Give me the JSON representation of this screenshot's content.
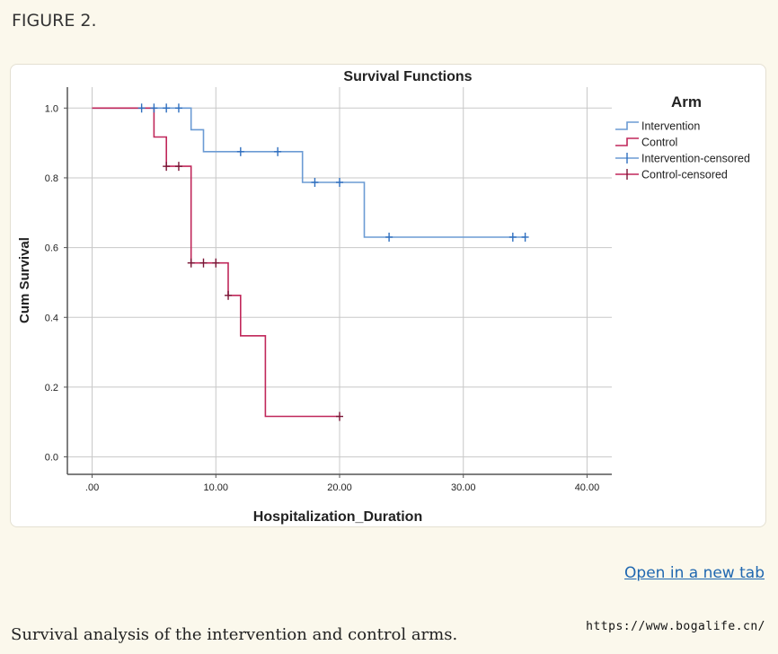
{
  "figure": {
    "label": "FIGURE 2.",
    "link_text": "Open in a new tab",
    "caption": "Survival analysis of the intervention and control arms.",
    "watermark": "https://www.bogalife.cn/"
  },
  "colors": {
    "intervention": "#6b9bd4",
    "intervention_marker": "#2f6fbf",
    "control": "#c0275a",
    "control_marker": "#7a1535",
    "grid": "#c8c8c8",
    "axis": "#555555"
  },
  "chart_data": {
    "type": "line",
    "title": "Survival Functions",
    "xlabel": "Hospitalization_Duration",
    "ylabel": "Cum Survival",
    "xlim": [
      -2,
      42
    ],
    "ylim": [
      -0.05,
      1.06
    ],
    "xticks": [
      0,
      10,
      20,
      30,
      40
    ],
    "xtick_labels": [
      ".00",
      "10.00",
      "20.00",
      "30.00",
      "40.00"
    ],
    "yticks": [
      0.0,
      0.2,
      0.4,
      0.6,
      0.8,
      1.0
    ],
    "ytick_labels": [
      "0.0",
      "0.2",
      "0.4",
      "0.6",
      "0.8",
      "1.0"
    ],
    "grid": true,
    "legend": {
      "title": "Arm",
      "position": "right",
      "entries": [
        "Intervention",
        "Control",
        "Intervention-censored",
        "Control-censored"
      ]
    },
    "series": [
      {
        "name": "Intervention",
        "step": [
          [
            0,
            1.0
          ],
          [
            8,
            1.0
          ],
          [
            8,
            0.938
          ],
          [
            9,
            0.938
          ],
          [
            9,
            0.875
          ],
          [
            17,
            0.875
          ],
          [
            17,
            0.787
          ],
          [
            22,
            0.787
          ],
          [
            22,
            0.63
          ],
          [
            35,
            0.63
          ]
        ],
        "censored": [
          [
            4,
            1.0
          ],
          [
            5,
            1.0
          ],
          [
            6,
            1.0
          ],
          [
            7,
            1.0
          ],
          [
            12,
            0.875
          ],
          [
            15,
            0.875
          ],
          [
            18,
            0.787
          ],
          [
            20,
            0.787
          ],
          [
            24,
            0.63
          ],
          [
            34,
            0.63
          ],
          [
            35,
            0.63
          ]
        ]
      },
      {
        "name": "Control",
        "step": [
          [
            0,
            1.0
          ],
          [
            5,
            1.0
          ],
          [
            5,
            0.917
          ],
          [
            6,
            0.917
          ],
          [
            6,
            0.833
          ],
          [
            8,
            0.833
          ],
          [
            8,
            0.556
          ],
          [
            11,
            0.556
          ],
          [
            11,
            0.463
          ],
          [
            12,
            0.463
          ],
          [
            12,
            0.347
          ],
          [
            14,
            0.347
          ],
          [
            14,
            0.116
          ],
          [
            20,
            0.116
          ]
        ],
        "censored": [
          [
            6,
            0.833
          ],
          [
            7,
            0.833
          ],
          [
            8,
            0.556
          ],
          [
            9,
            0.556
          ],
          [
            10,
            0.556
          ],
          [
            11,
            0.463
          ],
          [
            20,
            0.116
          ]
        ]
      }
    ]
  }
}
